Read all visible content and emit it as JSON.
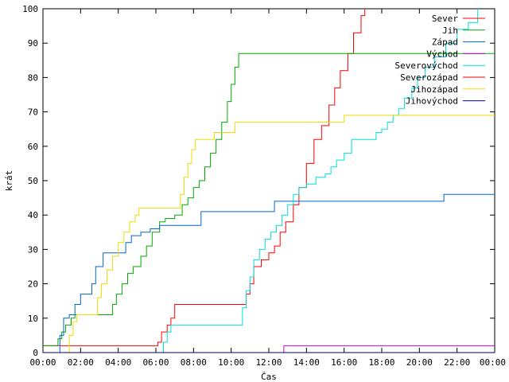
{
  "chart_data": {
    "type": "line",
    "xlabel": "Čas",
    "ylabel": "krát",
    "xlim": [
      0,
      24
    ],
    "ylim": [
      0,
      100
    ],
    "x_unit": "hours",
    "x_tick_labels": [
      "00:00",
      "02:00",
      "04:00",
      "06:00",
      "08:00",
      "10:00",
      "12:00",
      "14:00",
      "16:00",
      "18:00",
      "20:00",
      "22:00",
      "00:00"
    ],
    "y_ticks": [
      0,
      10,
      20,
      30,
      40,
      50,
      60,
      70,
      80,
      90,
      100
    ],
    "grid": false,
    "legend_position": "top-right",
    "series": [
      {
        "name": "Sever",
        "color": "#ff0000",
        "points": [
          [
            0,
            2
          ],
          [
            6.0,
            2
          ],
          [
            6.1,
            3
          ],
          [
            6.3,
            6
          ],
          [
            6.6,
            8
          ],
          [
            6.8,
            10
          ],
          [
            7.0,
            14
          ],
          [
            10.6,
            14
          ],
          [
            10.8,
            17
          ],
          [
            11.0,
            20
          ],
          [
            11.2,
            25
          ],
          [
            11.6,
            27
          ],
          [
            12.0,
            29
          ],
          [
            12.3,
            31
          ],
          [
            12.6,
            35
          ],
          [
            12.9,
            38
          ],
          [
            13.3,
            43
          ],
          [
            13.6,
            48
          ],
          [
            14.0,
            55
          ],
          [
            14.4,
            62
          ],
          [
            14.8,
            66
          ],
          [
            15.2,
            72
          ],
          [
            15.5,
            77
          ],
          [
            15.8,
            82
          ],
          [
            16.2,
            87
          ],
          [
            16.5,
            93
          ],
          [
            16.9,
            98
          ],
          [
            17.1,
            100
          ]
        ]
      },
      {
        "name": "Jih",
        "color": "#00aa00",
        "points": [
          [
            0,
            2
          ],
          [
            0.6,
            2
          ],
          [
            0.8,
            4
          ],
          [
            1.0,
            6
          ],
          [
            1.2,
            8
          ],
          [
            1.5,
            10
          ],
          [
            1.7,
            11
          ],
          [
            3.5,
            11
          ],
          [
            3.7,
            14
          ],
          [
            3.9,
            17
          ],
          [
            4.2,
            20
          ],
          [
            4.5,
            23
          ],
          [
            4.8,
            25
          ],
          [
            5.2,
            28
          ],
          [
            5.5,
            31
          ],
          [
            5.8,
            35
          ],
          [
            6.2,
            38
          ],
          [
            6.5,
            39
          ],
          [
            7.0,
            40
          ],
          [
            7.4,
            43
          ],
          [
            7.7,
            45
          ],
          [
            8.0,
            48
          ],
          [
            8.3,
            50
          ],
          [
            8.6,
            54
          ],
          [
            8.9,
            58
          ],
          [
            9.2,
            62
          ],
          [
            9.5,
            67
          ],
          [
            9.8,
            73
          ],
          [
            10.0,
            78
          ],
          [
            10.2,
            83
          ],
          [
            10.4,
            87
          ],
          [
            24,
            87
          ]
        ]
      },
      {
        "name": "Západ",
        "color": "#0066cc",
        "points": [
          [
            0,
            0
          ],
          [
            0.7,
            0
          ],
          [
            0.9,
            5
          ],
          [
            1.1,
            10
          ],
          [
            1.4,
            11
          ],
          [
            1.7,
            14
          ],
          [
            2.0,
            17
          ],
          [
            2.6,
            20
          ],
          [
            2.8,
            25
          ],
          [
            3.2,
            29
          ],
          [
            4.0,
            29
          ],
          [
            4.4,
            32
          ],
          [
            4.7,
            34
          ],
          [
            5.2,
            35
          ],
          [
            5.7,
            36
          ],
          [
            6.2,
            37
          ],
          [
            8.2,
            37
          ],
          [
            8.4,
            41
          ],
          [
            12.1,
            41
          ],
          [
            12.3,
            44
          ],
          [
            21.1,
            44
          ],
          [
            21.3,
            46
          ],
          [
            24,
            46
          ]
        ]
      },
      {
        "name": "Východ",
        "color": "#cc00cc",
        "points": [
          [
            0,
            0
          ],
          [
            12.7,
            0
          ],
          [
            12.8,
            2
          ],
          [
            24,
            2
          ]
        ]
      },
      {
        "name": "Severovýchod",
        "color": "#00dddd",
        "points": [
          [
            0,
            0
          ],
          [
            6.2,
            0
          ],
          [
            6.4,
            3
          ],
          [
            6.6,
            6
          ],
          [
            6.8,
            8
          ],
          [
            10.4,
            8
          ],
          [
            10.6,
            13
          ],
          [
            10.8,
            18
          ],
          [
            11.0,
            22
          ],
          [
            11.2,
            27
          ],
          [
            11.5,
            30
          ],
          [
            11.8,
            33
          ],
          [
            12.1,
            35
          ],
          [
            12.4,
            37
          ],
          [
            12.7,
            40
          ],
          [
            13.0,
            43
          ],
          [
            13.3,
            46
          ],
          [
            13.6,
            48
          ],
          [
            14.0,
            49
          ],
          [
            14.5,
            51
          ],
          [
            15.0,
            52
          ],
          [
            15.3,
            54
          ],
          [
            15.6,
            56
          ],
          [
            16.0,
            58
          ],
          [
            16.4,
            62
          ],
          [
            17.5,
            62
          ],
          [
            17.7,
            64
          ],
          [
            18.0,
            65
          ],
          [
            18.3,
            67
          ],
          [
            18.6,
            69
          ],
          [
            18.9,
            71
          ],
          [
            19.2,
            74
          ],
          [
            19.6,
            77
          ],
          [
            19.9,
            80
          ],
          [
            20.3,
            83
          ],
          [
            20.8,
            86
          ],
          [
            21.4,
            90
          ],
          [
            22.0,
            94
          ],
          [
            22.6,
            96
          ],
          [
            23.1,
            100
          ]
        ]
      },
      {
        "name": "Severozápad",
        "color": "#ee0000",
        "points": [
          [
            0,
            0
          ],
          [
            24,
            0
          ]
        ]
      },
      {
        "name": "Jihozápad",
        "color": "#eedd00",
        "points": [
          [
            0,
            0
          ],
          [
            1.2,
            0
          ],
          [
            1.4,
            5
          ],
          [
            1.6,
            9
          ],
          [
            1.8,
            11
          ],
          [
            2.7,
            11
          ],
          [
            2.9,
            16
          ],
          [
            3.1,
            20
          ],
          [
            3.4,
            24
          ],
          [
            3.7,
            28
          ],
          [
            4.0,
            32
          ],
          [
            4.3,
            35
          ],
          [
            4.6,
            38
          ],
          [
            4.9,
            40
          ],
          [
            5.1,
            42
          ],
          [
            7.1,
            42
          ],
          [
            7.3,
            46
          ],
          [
            7.5,
            51
          ],
          [
            7.7,
            55
          ],
          [
            7.9,
            59
          ],
          [
            8.1,
            62
          ],
          [
            8.9,
            62
          ],
          [
            9.1,
            64
          ],
          [
            10.0,
            64
          ],
          [
            10.2,
            67
          ],
          [
            15.8,
            67
          ],
          [
            16.0,
            69
          ],
          [
            24,
            69
          ]
        ]
      },
      {
        "name": "Jihovýchod",
        "color": "#0000aa",
        "points": [
          [
            0,
            0
          ],
          [
            24,
            0
          ]
        ]
      }
    ]
  }
}
